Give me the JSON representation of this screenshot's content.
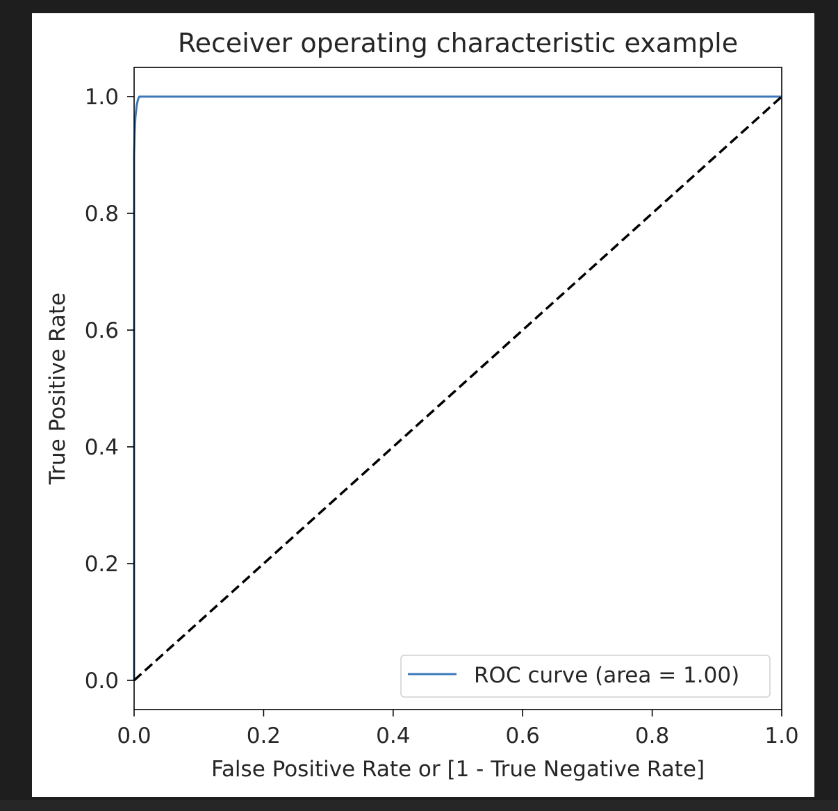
{
  "chart_data": {
    "type": "line",
    "title": "Receiver operating characteristic example",
    "xlabel": "False Positive Rate or [1 - True Negative Rate]",
    "ylabel": "True Positive Rate",
    "xlim": [
      0.0,
      1.0
    ],
    "ylim": [
      -0.05,
      1.05
    ],
    "xticks": [
      0.0,
      0.2,
      0.4,
      0.6,
      0.8,
      1.0
    ],
    "yticks": [
      0.0,
      0.2,
      0.4,
      0.6,
      0.8,
      1.0
    ],
    "xtick_labels": [
      "0.0",
      "0.2",
      "0.4",
      "0.6",
      "0.8",
      "1.0"
    ],
    "ytick_labels": [
      "0.0",
      "0.2",
      "0.4",
      "0.6",
      "0.8",
      "1.0"
    ],
    "grid": false,
    "legend_position": "lower-right",
    "series": [
      {
        "name": "ROC curve (area = 1.00)",
        "color": "#3a78b8",
        "style": "solid",
        "x": [
          0.0,
          0.0,
          0.001,
          0.002,
          0.004,
          0.006,
          0.008,
          1.0
        ],
        "y": [
          0.0,
          0.9,
          0.94,
          0.965,
          0.985,
          0.995,
          1.0,
          1.0
        ]
      },
      {
        "color": "#000000",
        "style": "dashed",
        "x": [
          0.0,
          1.0
        ],
        "y": [
          0.0,
          1.0
        ]
      }
    ]
  }
}
